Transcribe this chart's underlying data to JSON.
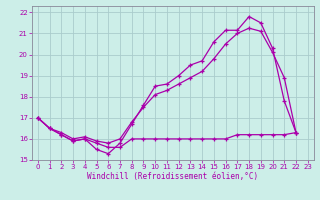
{
  "background_color": "#cceee8",
  "grid_color": "#aacccc",
  "line_color": "#aa00aa",
  "xlabel": "Windchill (Refroidissement éolien,°C)",
  "xlim": [
    -0.5,
    23.5
  ],
  "ylim": [
    15.0,
    22.3
  ],
  "xticks": [
    0,
    1,
    2,
    3,
    4,
    5,
    6,
    7,
    8,
    9,
    10,
    11,
    12,
    13,
    14,
    15,
    16,
    17,
    18,
    19,
    20,
    21,
    22,
    23
  ],
  "yticks": [
    15,
    16,
    17,
    18,
    19,
    20,
    21,
    22
  ],
  "series1_x": [
    0,
    1,
    2,
    3,
    4,
    5,
    6,
    7,
    8,
    9,
    10,
    11,
    12,
    13,
    14,
    15,
    16,
    17,
    18,
    19,
    20,
    21,
    22
  ],
  "series1_y": [
    17.0,
    16.5,
    16.2,
    15.9,
    16.0,
    15.5,
    15.3,
    15.8,
    16.7,
    17.6,
    18.5,
    18.6,
    19.0,
    19.5,
    19.7,
    20.6,
    21.15,
    21.15,
    21.8,
    21.5,
    20.3,
    17.8,
    16.3
  ],
  "series2_x": [
    0,
    1,
    2,
    3,
    4,
    5,
    6,
    7,
    8,
    9,
    10,
    11,
    12,
    13,
    14,
    15,
    16,
    17,
    18,
    19,
    20,
    21,
    22
  ],
  "series2_y": [
    17.0,
    16.5,
    16.2,
    15.9,
    16.0,
    15.8,
    15.6,
    15.6,
    16.0,
    16.0,
    16.0,
    16.0,
    16.0,
    16.0,
    16.0,
    16.0,
    16.0,
    16.2,
    16.2,
    16.2,
    16.2,
    16.2,
    16.3
  ],
  "series3_x": [
    0,
    1,
    2,
    3,
    4,
    5,
    6,
    7,
    8,
    9,
    10,
    11,
    12,
    13,
    14,
    15,
    16,
    17,
    18,
    19,
    20,
    21,
    22
  ],
  "series3_y": [
    17.0,
    16.5,
    16.3,
    16.0,
    16.1,
    15.9,
    15.8,
    16.0,
    16.8,
    17.5,
    18.1,
    18.3,
    18.6,
    18.9,
    19.2,
    19.8,
    20.5,
    21.0,
    21.25,
    21.1,
    20.1,
    18.9,
    16.3
  ]
}
